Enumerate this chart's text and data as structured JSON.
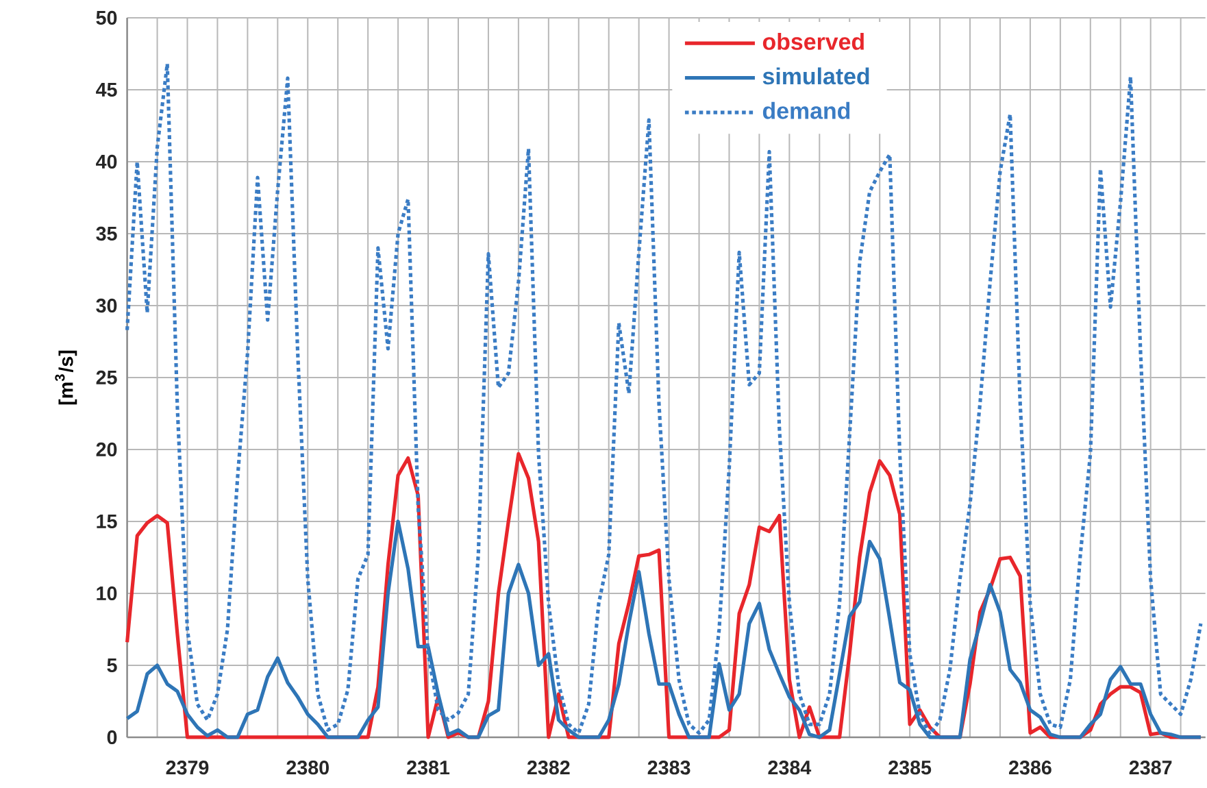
{
  "chart_data": {
    "type": "line",
    "ylabel": "[m$^{3}$/s]",
    "x": [
      "2379-01",
      "2379-02",
      "2379-03",
      "2379-04",
      "2379-05",
      "2379-06",
      "2379-07",
      "2379-08",
      "2379-09",
      "2379-10",
      "2379-11",
      "2379-12",
      "2380-01",
      "2380-02",
      "2380-03",
      "2380-04",
      "2380-05",
      "2380-06",
      "2380-07",
      "2380-08",
      "2380-09",
      "2380-10",
      "2380-11",
      "2380-12",
      "2381-01",
      "2381-02",
      "2381-03",
      "2381-04",
      "2381-05",
      "2381-06",
      "2381-07",
      "2381-08",
      "2381-09",
      "2381-10",
      "2381-11",
      "2381-12",
      "2382-01",
      "2382-02",
      "2382-03",
      "2382-04",
      "2382-05",
      "2382-06",
      "2382-07",
      "2382-08",
      "2382-09",
      "2382-10",
      "2382-11",
      "2382-12",
      "2383-01",
      "2383-02",
      "2383-03",
      "2383-04",
      "2383-05",
      "2383-06",
      "2383-07",
      "2383-08",
      "2383-09",
      "2383-10",
      "2383-11",
      "2383-12",
      "2384-01",
      "2384-02",
      "2384-03",
      "2384-04",
      "2384-05",
      "2384-06",
      "2384-07",
      "2384-08",
      "2384-09",
      "2384-10",
      "2384-11",
      "2384-12",
      "2385-01",
      "2385-02",
      "2385-03",
      "2385-04",
      "2385-05",
      "2385-06",
      "2385-07",
      "2385-08",
      "2385-09",
      "2385-10",
      "2385-11",
      "2385-12",
      "2386-01",
      "2386-02",
      "2386-03",
      "2386-04",
      "2386-05",
      "2386-06",
      "2386-07",
      "2386-08",
      "2386-09",
      "2386-10",
      "2386-11",
      "2386-12",
      "2387-01",
      "2387-02",
      "2387-03",
      "2387-04",
      "2387-05",
      "2387-06",
      "2387-07",
      "2387-08",
      "2387-09",
      "2387-10",
      "2387-11",
      "2387-12"
    ],
    "series": [
      {
        "name": "observed",
        "color": "#e8262b",
        "line_style": "solid",
        "values": [
          6.6,
          14,
          14.9,
          15.4,
          14.9,
          7.2,
          0,
          0,
          0,
          0,
          0,
          0,
          0,
          0,
          0,
          0,
          0,
          0,
          0,
          0,
          0,
          0,
          0,
          0,
          0,
          3.5,
          12,
          18.2,
          19.4,
          16.8,
          0,
          2.8,
          0,
          0.3,
          0,
          0,
          2.5,
          10,
          15,
          19.7,
          18,
          13.6,
          0,
          3,
          0,
          0,
          0,
          0,
          0,
          6.5,
          9.3,
          12.6,
          12.7,
          13,
          0,
          0,
          0,
          0,
          0,
          0,
          0.5,
          8.6,
          10.6,
          14.6,
          14.3,
          15.4,
          4,
          0,
          2.1,
          0,
          0,
          0,
          5.8,
          12.5,
          17,
          19.2,
          18.2,
          15.5,
          0.9,
          1.9,
          0.7,
          0,
          0,
          0,
          3.7,
          8.7,
          10.3,
          12.4,
          12.5,
          11.2,
          0.3,
          0.7,
          0,
          0,
          0,
          0,
          0.5,
          2.3,
          3,
          3.5,
          3.5,
          3.1,
          0.2,
          0.3,
          0,
          0,
          0,
          0
        ]
      },
      {
        "name": "simulated",
        "color": "#2e75b6",
        "line_style": "solid",
        "values": [
          1.3,
          1.8,
          4.4,
          5,
          3.7,
          3.2,
          1.6,
          0.7,
          0.1,
          0.5,
          0,
          0,
          1.6,
          1.9,
          4.2,
          5.5,
          3.8,
          2.8,
          1.6,
          0.9,
          0,
          0,
          0,
          0,
          1.2,
          2.1,
          10,
          15,
          11.7,
          6.3,
          6.3,
          3,
          0.2,
          0.5,
          0,
          0,
          1.5,
          1.9,
          10,
          12,
          10,
          5,
          5.8,
          1.2,
          0.5,
          0,
          0,
          0,
          1.2,
          3.7,
          7.9,
          11.5,
          7.2,
          3.7,
          3.7,
          1.6,
          0,
          0,
          0,
          5.1,
          1.9,
          3,
          7.9,
          9.3,
          6.1,
          4.4,
          2.8,
          1.9,
          0.2,
          0,
          0.5,
          4.4,
          8.4,
          9.4,
          13.6,
          12.4,
          8.2,
          3.8,
          3.3,
          0.9,
          0,
          0,
          0,
          0,
          5.4,
          7.9,
          10.6,
          8.7,
          4.7,
          3.8,
          1.9,
          1.4,
          0.2,
          0,
          0,
          0,
          0.9,
          1.6,
          4,
          4.9,
          3.7,
          3.7,
          1.6,
          0.3,
          0.2,
          0,
          0,
          0
        ]
      },
      {
        "name": "demand",
        "color": "#3a7cc4",
        "line_style": "dotted",
        "values": [
          28.3,
          40,
          29.5,
          41,
          46.8,
          23,
          7.5,
          2.3,
          1.2,
          3,
          7.5,
          18,
          26.7,
          38.9,
          29,
          38,
          45.8,
          26.7,
          11,
          3,
          0.5,
          0.9,
          3.3,
          11,
          12.7,
          34,
          27,
          35,
          37.4,
          16,
          5.8,
          1.9,
          1.2,
          1.7,
          3,
          12.7,
          33.6,
          24.3,
          25.3,
          31.6,
          40.9,
          19.7,
          9.3,
          3.7,
          0.9,
          0.3,
          2.3,
          9.3,
          12.7,
          28.8,
          23.9,
          33.7,
          42.9,
          23.2,
          11,
          4,
          0.9,
          0.3,
          1.2,
          7.5,
          18.7,
          33.7,
          24.5,
          25.3,
          40.7,
          21.5,
          9.3,
          3,
          0.9,
          0.9,
          3,
          9.3,
          21,
          33,
          37.9,
          39.3,
          40.5,
          19.7,
          5.8,
          1.6,
          0.2,
          1.2,
          4.7,
          11,
          16.2,
          23.2,
          31.6,
          39.3,
          43.3,
          23.2,
          9.3,
          3,
          0.9,
          0.7,
          4,
          12.7,
          19.7,
          39.5,
          29.9,
          37.2,
          45.9,
          26.7,
          11,
          3,
          2.3,
          1.6,
          4,
          7.9
        ]
      }
    ],
    "xlim": [
      "2379-01-01",
      "2387-12-15"
    ],
    "xticks": [
      {
        "value": "2379-01",
        "label": null
      },
      {
        "value": "2379-04",
        "label": null
      },
      {
        "value": "2379-07",
        "label": "2379"
      },
      {
        "value": "2379-10",
        "label": null
      },
      {
        "value": "2380-01",
        "label": null
      },
      {
        "value": "2380-04",
        "label": null
      },
      {
        "value": "2380-07",
        "label": "2380"
      },
      {
        "value": "2380-10",
        "label": null
      },
      {
        "value": "2381-01",
        "label": null
      },
      {
        "value": "2381-04",
        "label": null
      },
      {
        "value": "2381-07",
        "label": "2381"
      },
      {
        "value": "2381-10",
        "label": null
      },
      {
        "value": "2382-01",
        "label": null
      },
      {
        "value": "2382-04",
        "label": null
      },
      {
        "value": "2382-07",
        "label": "2382"
      },
      {
        "value": "2382-10",
        "label": null
      },
      {
        "value": "2383-01",
        "label": null
      },
      {
        "value": "2383-04",
        "label": null
      },
      {
        "value": "2383-07",
        "label": "2383"
      },
      {
        "value": "2383-10",
        "label": null
      },
      {
        "value": "2384-01",
        "label": null
      },
      {
        "value": "2384-04",
        "label": null
      },
      {
        "value": "2384-07",
        "label": "2384"
      },
      {
        "value": "2384-10",
        "label": null
      },
      {
        "value": "2385-01",
        "label": null
      },
      {
        "value": "2385-04",
        "label": null
      },
      {
        "value": "2385-07",
        "label": "2385"
      },
      {
        "value": "2385-10",
        "label": null
      },
      {
        "value": "2386-01",
        "label": null
      },
      {
        "value": "2386-04",
        "label": null
      },
      {
        "value": "2386-07",
        "label": "2386"
      },
      {
        "value": "2386-10",
        "label": null
      },
      {
        "value": "2387-01",
        "label": null
      },
      {
        "value": "2387-04",
        "label": null
      },
      {
        "value": "2387-07",
        "label": "2387"
      },
      {
        "value": "2387-10",
        "label": null
      }
    ],
    "ylim": [
      0,
      50
    ],
    "yticks": [
      0,
      5,
      10,
      15,
      20,
      25,
      30,
      35,
      40,
      45,
      50
    ],
    "grid": true,
    "legend": "top",
    "marker": "none"
  }
}
